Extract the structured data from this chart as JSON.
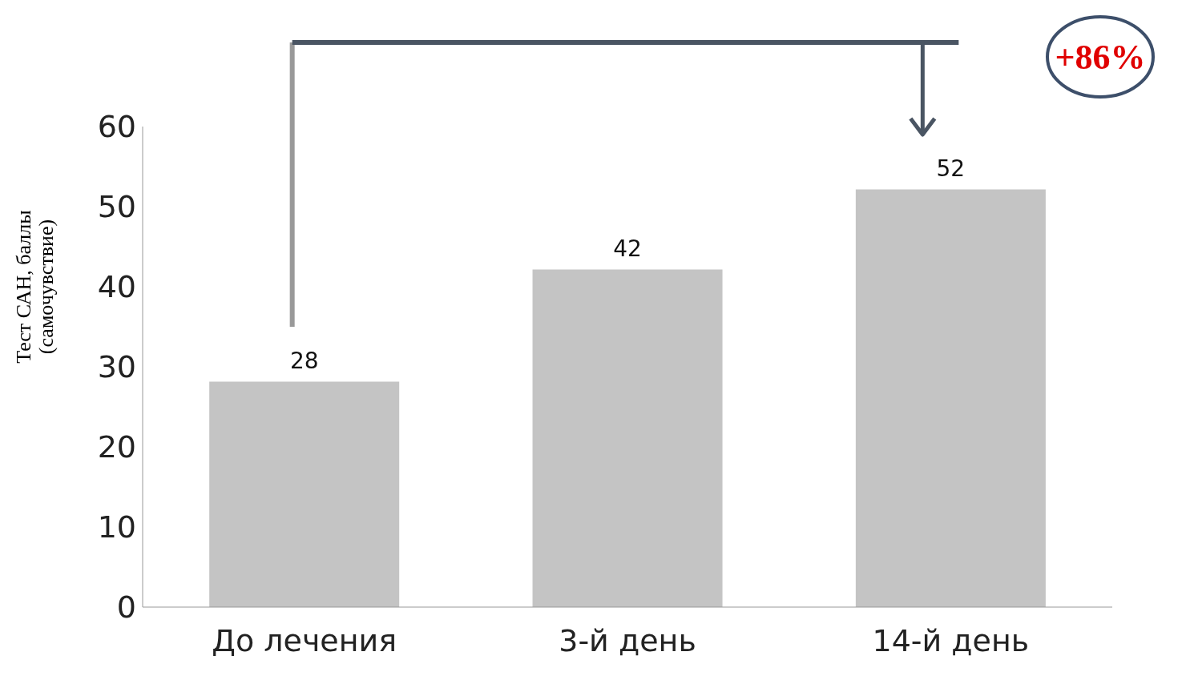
{
  "chart_data": {
    "type": "bar",
    "categories": [
      "До лечения",
      "3-й день",
      "14-й день"
    ],
    "values": [
      28,
      42,
      52
    ],
    "color": "#c4c4c4",
    "ylabel": "Тест САН, баллы (самочувствие)",
    "ylim": [
      0,
      60
    ],
    "yticks": [
      0,
      10,
      20,
      30,
      40,
      50,
      60
    ],
    "grid": false,
    "data_labels": true,
    "annotations": [
      "+86%"
    ]
  }
}
